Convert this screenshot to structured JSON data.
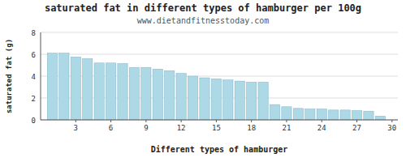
{
  "chart_data": {
    "type": "bar",
    "title": "saturated fat in different types of hamburger per 100g",
    "subtitle": "www.dietandfitnesstoday.com",
    "xlabel": "Different types of hamburger",
    "ylabel": "saturated fat (g)",
    "x": [
      1,
      2,
      3,
      4,
      5,
      6,
      7,
      8,
      9,
      10,
      11,
      12,
      13,
      14,
      15,
      16,
      17,
      18,
      19,
      20,
      21,
      22,
      23,
      24,
      25,
      26,
      27,
      28,
      29
    ],
    "values": [
      6.1,
      6.1,
      5.75,
      5.6,
      5.2,
      5.2,
      5.15,
      4.8,
      4.8,
      4.65,
      4.5,
      4.25,
      4.0,
      3.85,
      3.75,
      3.65,
      3.55,
      3.45,
      3.45,
      1.4,
      1.2,
      1.05,
      1.0,
      1.0,
      0.9,
      0.9,
      0.85,
      0.8,
      0.35
    ],
    "color": "#add8e6",
    "xlim": [
      0.0,
      30.5
    ],
    "xticks": [
      3,
      6,
      9,
      12,
      15,
      18,
      21,
      24,
      27,
      30
    ],
    "ylim": [
      0,
      8
    ],
    "yticks": [
      0,
      2,
      4,
      6,
      8
    ],
    "grid": true
  }
}
